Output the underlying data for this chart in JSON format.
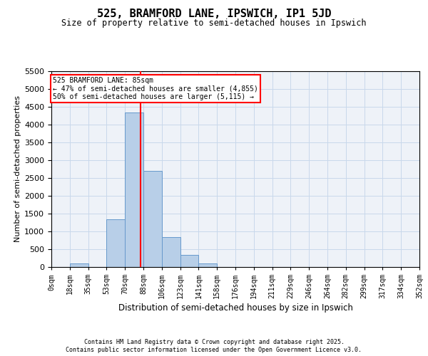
{
  "title": "525, BRAMFORD LANE, IPSWICH, IP1 5JD",
  "subtitle": "Size of property relative to semi-detached houses in Ipswich",
  "xlabel": "Distribution of semi-detached houses by size in Ipswich",
  "ylabel": "Number of semi-detached properties",
  "bar_color": "#b8cfe8",
  "bar_edge_color": "#6699cc",
  "grid_color": "#c8d8eb",
  "property_size": 85,
  "property_line_color": "red",
  "annotation_text": "525 BRAMFORD LANE: 85sqm\n← 47% of semi-detached houses are smaller (4,855)\n50% of semi-detached houses are larger (5,115) →",
  "box_color": "white",
  "box_edge_color": "red",
  "footer_line1": "Contains HM Land Registry data © Crown copyright and database right 2025.",
  "footer_line2": "Contains public sector information licensed under the Open Government Licence v3.0.",
  "bin_edges": [
    0,
    17.6,
    35.2,
    52.8,
    70.4,
    88,
    105.6,
    123.2,
    140.8,
    158.4,
    176,
    193.6,
    211.2,
    228.8,
    246.4,
    264,
    281.6,
    299.2,
    316.8,
    334.4,
    352
  ],
  "bin_labels": [
    "0sqm",
    "18sqm",
    "35sqm",
    "53sqm",
    "70sqm",
    "88sqm",
    "106sqm",
    "123sqm",
    "141sqm",
    "158sqm",
    "176sqm",
    "194sqm",
    "211sqm",
    "229sqm",
    "246sqm",
    "264sqm",
    "282sqm",
    "299sqm",
    "317sqm",
    "334sqm",
    "352sqm"
  ],
  "counts": [
    5,
    100,
    5,
    1350,
    4350,
    2700,
    850,
    350,
    100,
    5,
    5,
    5,
    0,
    0,
    0,
    0,
    0,
    0,
    0,
    0
  ],
  "ylim": [
    0,
    5500
  ],
  "xlim": [
    0,
    352
  ],
  "background_color": "#eef2f8"
}
